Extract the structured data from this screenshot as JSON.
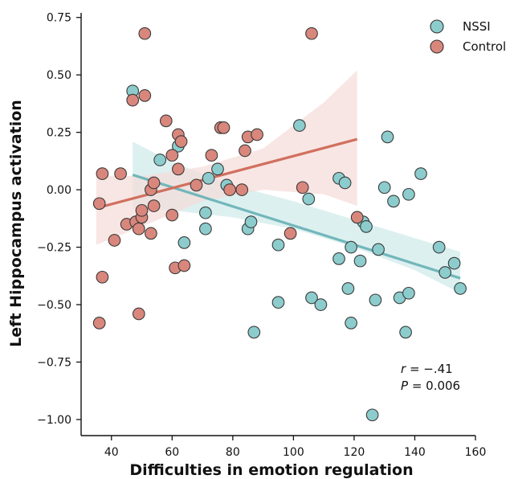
{
  "chart_data": {
    "type": "scatter",
    "xlabel": "Difficulties in emotion regulation",
    "ylabel": "Left Hippocampus activation",
    "xlim": [
      30,
      160
    ],
    "ylim": [
      -1.07,
      0.77
    ],
    "x_ticks": [
      40,
      60,
      80,
      100,
      120,
      140,
      160
    ],
    "y_ticks": [
      0.75,
      0.5,
      0.25,
      0.0,
      -0.25,
      -0.5,
      -0.75,
      -1.0
    ],
    "y_tick_labels": [
      "0.75",
      "0.50",
      "0.25",
      "0.00",
      "−0.25",
      "−0.50",
      "−0.75",
      "−1.00"
    ],
    "legend_position": "top-right",
    "annotation": {
      "r_label": "r",
      "r_value": " = −.41",
      "p_label": "P",
      "p_value": " = 0.006"
    },
    "series": [
      {
        "name": "NSSI",
        "color": "#8ccccd",
        "line_color": "#72b7bb",
        "band_color": "#cfeaea",
        "fit": {
          "x": [
            47,
            155
          ],
          "y": [
            0.065,
            -0.385
          ]
        },
        "band": {
          "x": [
            47,
            60,
            80,
            100,
            120,
            140,
            155
          ],
          "upper": [
            0.21,
            0.12,
            0.02,
            -0.05,
            -0.13,
            -0.21,
            -0.27
          ],
          "lower": [
            -0.08,
            -0.09,
            -0.12,
            -0.17,
            -0.25,
            -0.35,
            -0.45
          ]
        },
        "points": [
          [
            47,
            0.43
          ],
          [
            56,
            0.13
          ],
          [
            62,
            0.19
          ],
          [
            64,
            -0.23
          ],
          [
            71,
            -0.1
          ],
          [
            71,
            -0.17
          ],
          [
            72,
            0.05
          ],
          [
            75,
            0.09
          ],
          [
            78,
            0.02
          ],
          [
            85,
            -0.17
          ],
          [
            86,
            -0.14
          ],
          [
            87,
            -0.62
          ],
          [
            95,
            -0.24
          ],
          [
            95,
            -0.49
          ],
          [
            102,
            0.28
          ],
          [
            105,
            -0.04
          ],
          [
            106,
            -0.47
          ],
          [
            109,
            -0.5
          ],
          [
            115,
            0.05
          ],
          [
            115,
            -0.3
          ],
          [
            117,
            0.03
          ],
          [
            118,
            -0.43
          ],
          [
            119,
            -0.25
          ],
          [
            119,
            -0.58
          ],
          [
            122,
            -0.31
          ],
          [
            123,
            -0.14
          ],
          [
            124,
            -0.16
          ],
          [
            126,
            -0.98
          ],
          [
            127,
            -0.48
          ],
          [
            128,
            -0.26
          ],
          [
            130,
            0.01
          ],
          [
            131,
            0.23
          ],
          [
            133,
            -0.05
          ],
          [
            135,
            -0.47
          ],
          [
            137,
            -0.62
          ],
          [
            138,
            -0.02
          ],
          [
            138,
            -0.45
          ],
          [
            142,
            0.07
          ],
          [
            148,
            -0.25
          ],
          [
            150,
            -0.36
          ],
          [
            153,
            -0.32
          ],
          [
            155,
            -0.43
          ]
        ]
      },
      {
        "name": "Control",
        "color": "#d9877c",
        "line_color": "#d1705f",
        "band_color": "#f5dcd9",
        "fit": {
          "x": [
            35,
            121
          ],
          "y": [
            -0.08,
            0.22
          ]
        },
        "band": {
          "x": [
            35,
            50,
            70,
            90,
            110,
            121
          ],
          "upper": [
            0.06,
            0.06,
            0.1,
            0.18,
            0.38,
            0.52
          ],
          "lower": [
            -0.24,
            -0.16,
            -0.05,
            0.0,
            -0.02,
            -0.07
          ]
        },
        "points": [
          [
            36,
            -0.06
          ],
          [
            36,
            -0.58
          ],
          [
            37,
            0.07
          ],
          [
            37,
            -0.38
          ],
          [
            41,
            -0.22
          ],
          [
            43,
            0.07
          ],
          [
            45,
            -0.15
          ],
          [
            47,
            0.39
          ],
          [
            48,
            -0.14
          ],
          [
            49,
            -0.17
          ],
          [
            49,
            -0.54
          ],
          [
            50,
            -0.12
          ],
          [
            50,
            -0.09
          ],
          [
            51,
            0.68
          ],
          [
            51,
            0.41
          ],
          [
            53,
            0.0
          ],
          [
            53,
            -0.19
          ],
          [
            54,
            0.03
          ],
          [
            54,
            -0.07
          ],
          [
            58,
            0.3
          ],
          [
            60,
            -0.11
          ],
          [
            60,
            0.15
          ],
          [
            61,
            -0.34
          ],
          [
            62,
            0.09
          ],
          [
            62,
            0.24
          ],
          [
            63,
            0.21
          ],
          [
            64,
            -0.33
          ],
          [
            68,
            0.02
          ],
          [
            73,
            0.15
          ],
          [
            76,
            0.27
          ],
          [
            77,
            0.27
          ],
          [
            79,
            0.0
          ],
          [
            83,
            0.0
          ],
          [
            84,
            0.17
          ],
          [
            85,
            0.23
          ],
          [
            88,
            0.24
          ],
          [
            99,
            -0.19
          ],
          [
            103,
            0.01
          ],
          [
            106,
            0.68
          ],
          [
            121,
            -0.12
          ]
        ]
      }
    ]
  }
}
